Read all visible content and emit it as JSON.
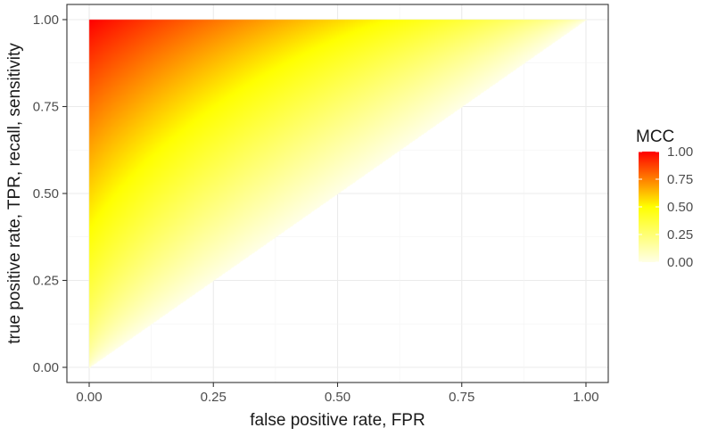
{
  "chart_data": {
    "type": "heatmap",
    "title": "",
    "xlabel": "false positive rate, FPR",
    "ylabel": "true positive rate, TPR, recall, sensitivity",
    "xlim": [
      0,
      1
    ],
    "ylim": [
      0,
      1
    ],
    "x_ticks": [
      "0.00",
      "0.25",
      "0.50",
      "0.75",
      "1.00"
    ],
    "y_ticks": [
      "0.00",
      "0.25",
      "0.50",
      "0.75",
      "1.00"
    ],
    "grid": true,
    "filled_region": "TPR >= FPR",
    "fill_variable": "MCC",
    "legend": {
      "title": "MCC",
      "placement": "right",
      "labels": [
        "1.00",
        "0.75",
        "0.50",
        "0.25",
        "0.00"
      ],
      "values": [
        1.0,
        0.75,
        0.5,
        0.25,
        0.0
      ]
    },
    "color_scale": {
      "low": "#ffffe0",
      "mid": "#ffff00",
      "high": "#ff0000",
      "domain": [
        0,
        1
      ]
    },
    "max_value": 1.0,
    "max_at": [
      0,
      1
    ],
    "min_value": 0.0,
    "min_along": "diagonal TPR = FPR"
  }
}
